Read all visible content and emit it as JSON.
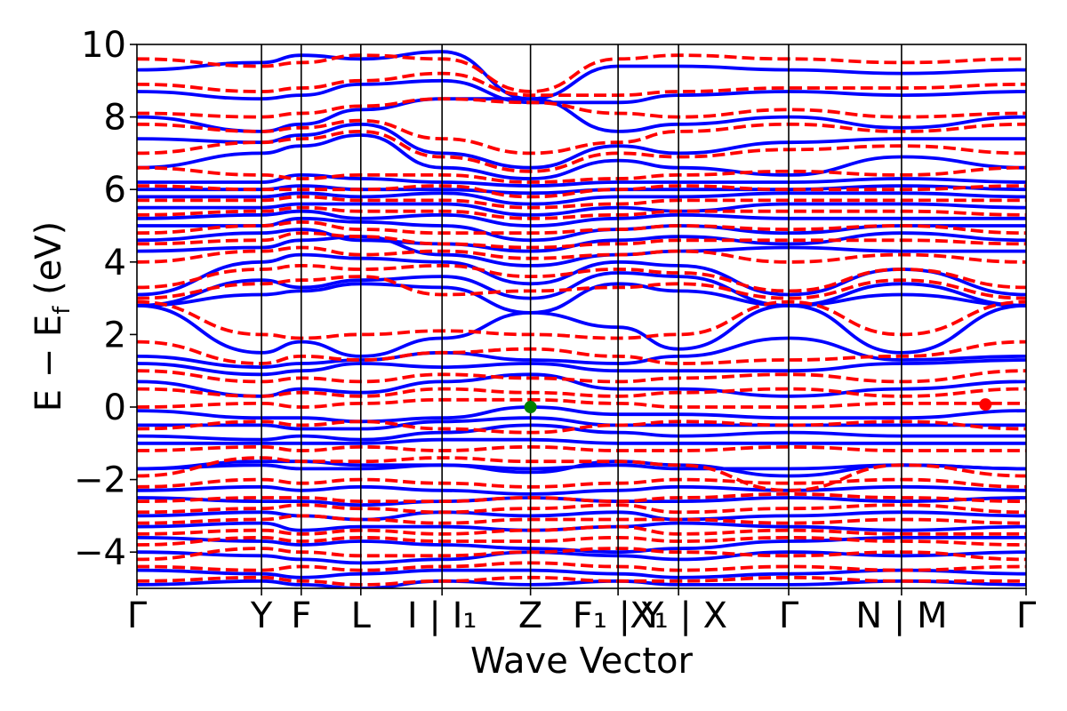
{
  "chart_data": {
    "type": "line",
    "title": "",
    "xlabel": "Wave Vector",
    "ylabel": "E − E",
    "ylabel_subscript": "f",
    "ylabel_unit": "(eV)",
    "ylim": [
      -5,
      10
    ],
    "yticks": [
      -4,
      -2,
      0,
      2,
      4,
      6,
      8,
      10
    ],
    "ytick_labels": [
      "−4",
      "−2",
      "0",
      "2",
      "4",
      "6",
      "8",
      "10"
    ],
    "x_range": [
      0,
      9.85
    ],
    "kpoints": [
      {
        "x": 0.0,
        "label": "Γ"
      },
      {
        "x": 1.38,
        "label": "Y"
      },
      {
        "x": 1.82,
        "label": "F"
      },
      {
        "x": 2.48,
        "label": "L"
      },
      {
        "x": 3.38,
        "label": "I | I₁"
      },
      {
        "x": 4.36,
        "label": "Z"
      },
      {
        "x": 5.33,
        "label": "F₁ | Y"
      },
      {
        "x": 6.0,
        "label": "X₁ | X"
      },
      {
        "x": 7.22,
        "label": "Γ"
      },
      {
        "x": 8.47,
        "label": "N | M"
      },
      {
        "x": 9.85,
        "label": "Γ"
      }
    ],
    "grid": false,
    "legend": "none",
    "series": [
      {
        "style": "solid",
        "color": "#0000ff",
        "bands": [
          [
            -4.9,
            -4.8,
            -4.9,
            -5.0,
            -4.8,
            -4.9,
            -4.8,
            -4.9,
            -4.9,
            -4.8,
            -4.9
          ],
          [
            -4.5,
            -4.6,
            -4.7,
            -4.6,
            -4.5,
            -4.5,
            -4.6,
            -4.7,
            -4.6,
            -4.5,
            -4.6
          ],
          [
            -4.0,
            -4.1,
            -4.2,
            -4.3,
            -4.2,
            -4.0,
            -4.1,
            -4.2,
            -4.0,
            -4.1,
            -4.0
          ],
          [
            -3.6,
            -3.7,
            -3.8,
            -3.7,
            -3.8,
            -3.9,
            -4.0,
            -3.9,
            -3.7,
            -3.6,
            -3.6
          ],
          [
            -3.3,
            -3.2,
            -3.4,
            -3.3,
            -3.3,
            -3.4,
            -3.3,
            -3.2,
            -3.3,
            -3.4,
            -3.3
          ],
          [
            -3.0,
            -2.9,
            -3.0,
            -3.1,
            -2.9,
            -3.0,
            -2.9,
            -3.1,
            -3.0,
            -2.9,
            -3.0
          ],
          [
            -2.5,
            -2.6,
            -2.6,
            -2.7,
            -2.6,
            -2.5,
            -2.6,
            -2.6,
            -2.5,
            -2.6,
            -2.5
          ],
          [
            -2.3,
            -2.2,
            -2.3,
            -2.2,
            -2.3,
            -2.4,
            -2.3,
            -2.2,
            -2.3,
            -2.2,
            -2.3
          ],
          [
            -1.7,
            -1.6,
            -1.7,
            -1.7,
            -1.6,
            -1.7,
            -1.6,
            -1.7,
            -1.7,
            -1.6,
            -1.7
          ],
          [
            -1.7,
            -1.5,
            -1.5,
            -1.6,
            -1.6,
            -1.8,
            -1.5,
            -1.6,
            -1.9,
            -1.6,
            -1.7
          ],
          [
            -1.0,
            -1.0,
            -1.0,
            -1.0,
            -0.9,
            -0.9,
            -1.0,
            -1.0,
            -1.0,
            -1.0,
            -1.0
          ],
          [
            -0.8,
            -0.9,
            -0.8,
            -0.9,
            -0.7,
            -0.5,
            -0.7,
            -0.8,
            -0.7,
            -0.8,
            -0.8
          ],
          [
            -0.5,
            -0.5,
            -0.6,
            -0.6,
            -0.4,
            -0.3,
            -0.5,
            -0.5,
            -0.5,
            -0.5,
            -0.5
          ],
          [
            -0.1,
            -0.3,
            -0.3,
            -0.4,
            -0.3,
            0.0,
            -0.2,
            -0.2,
            -0.3,
            -0.3,
            -0.1
          ],
          [
            0.7,
            0.3,
            0.5,
            0.4,
            0.7,
            0.9,
            0.5,
            0.5,
            0.3,
            0.5,
            0.7
          ],
          [
            1.2,
            0.9,
            1.0,
            1.2,
            1.1,
            1.2,
            1.0,
            1.0,
            1.0,
            1.2,
            1.3
          ],
          [
            1.4,
            1.1,
            1.2,
            1.3,
            1.5,
            1.3,
            1.2,
            1.4,
            1.9,
            1.3,
            1.4
          ],
          [
            2.8,
            1.5,
            1.8,
            1.4,
            1.9,
            2.6,
            2.2,
            1.6,
            2.8,
            1.5,
            2.8
          ],
          [
            2.8,
            3.1,
            3.2,
            3.4,
            3.3,
            2.6,
            3.4,
            3.2,
            2.8,
            3.1,
            2.8
          ],
          [
            2.8,
            3.5,
            3.3,
            3.5,
            3.6,
            3.0,
            3.7,
            3.6,
            2.8,
            3.4,
            2.8
          ],
          [
            3.1,
            4.0,
            4.2,
            4.1,
            4.0,
            3.4,
            4.0,
            3.9,
            3.1,
            3.8,
            3.1
          ],
          [
            4.3,
            4.4,
            4.6,
            4.7,
            4.2,
            3.9,
            4.2,
            4.3,
            4.4,
            4.3,
            4.3
          ],
          [
            4.6,
            4.8,
            4.9,
            4.6,
            4.5,
            4.3,
            4.6,
            4.7,
            4.5,
            4.8,
            4.6
          ],
          [
            5.0,
            5.0,
            5.2,
            5.1,
            5.0,
            4.6,
            4.9,
            5.0,
            4.8,
            5.0,
            5.0
          ],
          [
            5.2,
            5.3,
            5.4,
            5.2,
            5.3,
            5.0,
            5.2,
            5.3,
            5.2,
            5.2,
            5.2
          ],
          [
            5.5,
            5.5,
            5.6,
            5.6,
            5.6,
            5.3,
            5.5,
            5.4,
            5.6,
            5.6,
            5.5
          ],
          [
            5.8,
            5.8,
            5.9,
            5.8,
            5.9,
            5.6,
            5.8,
            5.8,
            5.9,
            5.9,
            5.8
          ],
          [
            6.0,
            6.0,
            6.1,
            6.0,
            6.0,
            5.9,
            6.0,
            6.0,
            6.0,
            6.1,
            6.0
          ],
          [
            6.2,
            6.2,
            6.4,
            6.3,
            6.2,
            6.1,
            6.2,
            6.2,
            6.2,
            6.3,
            6.2
          ],
          [
            6.6,
            7.0,
            7.2,
            7.5,
            6.6,
            6.3,
            6.8,
            6.6,
            6.4,
            6.9,
            6.6
          ],
          [
            7.4,
            7.3,
            7.5,
            7.8,
            7.0,
            6.6,
            7.2,
            7.0,
            7.3,
            7.4,
            7.4
          ],
          [
            8.0,
            7.6,
            7.8,
            8.2,
            8.5,
            8.5,
            7.6,
            7.8,
            8.0,
            7.7,
            8.0
          ],
          [
            8.7,
            8.5,
            8.6,
            8.9,
            9.0,
            8.4,
            8.4,
            8.6,
            8.7,
            8.6,
            8.7
          ],
          [
            9.3,
            9.5,
            9.7,
            9.6,
            9.8,
            8.5,
            9.4,
            9.4,
            9.3,
            9.2,
            9.3
          ]
        ]
      },
      {
        "style": "dashed",
        "color": "#ff0000",
        "bands": [
          [
            -4.8,
            -4.7,
            -4.8,
            -4.9,
            -4.8,
            -4.7,
            -4.8,
            -4.8,
            -4.7,
            -4.8,
            -4.8
          ],
          [
            -4.4,
            -4.5,
            -4.4,
            -4.5,
            -4.4,
            -4.3,
            -4.4,
            -4.5,
            -4.4,
            -4.5,
            -4.4
          ],
          [
            -4.2,
            -3.9,
            -4.0,
            -4.1,
            -4.1,
            -4.0,
            -3.9,
            -4.0,
            -4.1,
            -4.0,
            -4.2
          ],
          [
            -3.8,
            -3.6,
            -3.7,
            -3.6,
            -3.7,
            -3.7,
            -3.6,
            -3.7,
            -3.6,
            -3.7,
            -3.8
          ],
          [
            -3.5,
            -3.4,
            -3.5,
            -3.4,
            -3.5,
            -3.4,
            -3.3,
            -3.5,
            -3.4,
            -3.5,
            -3.5
          ],
          [
            -3.2,
            -3.1,
            -3.0,
            -3.1,
            -3.2,
            -3.1,
            -3.1,
            -3.1,
            -3.2,
            -3.1,
            -3.2
          ],
          [
            -2.9,
            -2.8,
            -2.7,
            -2.8,
            -2.9,
            -2.8,
            -2.7,
            -2.9,
            -2.8,
            -2.7,
            -2.9
          ],
          [
            -2.6,
            -2.5,
            -2.5,
            -2.6,
            -2.6,
            -2.5,
            -2.6,
            -2.5,
            -2.4,
            -2.5,
            -2.6
          ],
          [
            -2.2,
            -2.0,
            -2.1,
            -2.0,
            -2.1,
            -2.2,
            -2.1,
            -2.0,
            -2.1,
            -2.0,
            -2.2
          ],
          [
            -1.9,
            -1.4,
            -1.5,
            -1.5,
            -1.4,
            -1.5,
            -1.5,
            -1.6,
            -2.3,
            -1.6,
            -1.9
          ],
          [
            -1.2,
            -1.1,
            -1.2,
            -1.1,
            -1.2,
            -1.1,
            -1.2,
            -1.2,
            -1.1,
            -1.2,
            -1.2
          ],
          [
            -0.6,
            -0.4,
            -0.5,
            -0.4,
            -0.6,
            -0.7,
            -0.5,
            -0.4,
            -0.5,
            -0.4,
            -0.6
          ],
          [
            0.0,
            0.1,
            0.0,
            0.1,
            0.2,
            0.2,
            0.1,
            0.0,
            0.0,
            0.1,
            0.1
          ],
          [
            0.5,
            0.3,
            0.4,
            0.3,
            0.5,
            0.4,
            0.3,
            0.4,
            0.5,
            0.3,
            0.5
          ],
          [
            1.0,
            0.7,
            0.8,
            0.7,
            0.9,
            0.8,
            0.7,
            0.8,
            0.9,
            0.7,
            1.0
          ],
          [
            1.8,
            1.2,
            1.4,
            1.3,
            1.5,
            1.6,
            1.4,
            1.2,
            1.3,
            1.4,
            1.8
          ],
          [
            2.9,
            2.0,
            1.9,
            2.0,
            2.1,
            2.0,
            1.9,
            2.0,
            2.9,
            2.0,
            2.9
          ],
          [
            3.0,
            3.4,
            3.5,
            3.6,
            3.1,
            3.2,
            3.3,
            3.4,
            3.0,
            3.5,
            3.0
          ],
          [
            3.3,
            3.8,
            3.9,
            3.8,
            3.9,
            3.6,
            3.8,
            3.7,
            3.2,
            3.8,
            3.3
          ],
          [
            4.0,
            4.3,
            4.4,
            4.2,
            4.3,
            4.1,
            4.2,
            4.3,
            4.0,
            4.2,
            4.0
          ],
          [
            4.5,
            4.6,
            4.8,
            4.7,
            4.5,
            4.4,
            4.5,
            4.6,
            4.6,
            4.6,
            4.5
          ],
          [
            4.8,
            5.0,
            5.1,
            4.9,
            4.8,
            4.8,
            4.9,
            5.0,
            4.9,
            5.0,
            4.8
          ],
          [
            5.3,
            5.4,
            5.5,
            5.4,
            5.4,
            5.2,
            5.3,
            5.4,
            5.4,
            5.4,
            5.3
          ],
          [
            5.7,
            5.7,
            5.8,
            5.7,
            5.7,
            5.5,
            5.6,
            5.7,
            5.7,
            5.7,
            5.7
          ],
          [
            6.1,
            6.0,
            6.0,
            6.0,
            6.1,
            5.8,
            6.0,
            6.1,
            6.0,
            6.0,
            6.1
          ],
          [
            6.6,
            6.4,
            6.3,
            6.4,
            6.4,
            6.2,
            6.3,
            6.4,
            6.5,
            6.4,
            6.6
          ],
          [
            7.0,
            7.3,
            7.4,
            7.6,
            6.9,
            6.5,
            7.0,
            6.9,
            7.1,
            7.2,
            7.0
          ],
          [
            7.8,
            7.6,
            7.7,
            7.9,
            7.4,
            7.0,
            7.3,
            7.6,
            7.8,
            7.6,
            7.8
          ],
          [
            8.1,
            8.0,
            8.1,
            8.3,
            8.5,
            8.4,
            8.1,
            8.0,
            8.2,
            8.0,
            8.1
          ],
          [
            8.9,
            8.7,
            8.8,
            9.0,
            9.2,
            8.6,
            8.6,
            8.7,
            8.8,
            8.8,
            8.9
          ],
          [
            9.6,
            9.4,
            9.5,
            9.7,
            9.6,
            8.7,
            9.6,
            9.7,
            9.6,
            9.5,
            9.6
          ]
        ]
      }
    ],
    "markers": [
      {
        "x": 4.36,
        "y": 0.0,
        "color": "#008000"
      },
      {
        "x": 9.4,
        "y": 0.07,
        "color": "#ff0000"
      }
    ]
  }
}
